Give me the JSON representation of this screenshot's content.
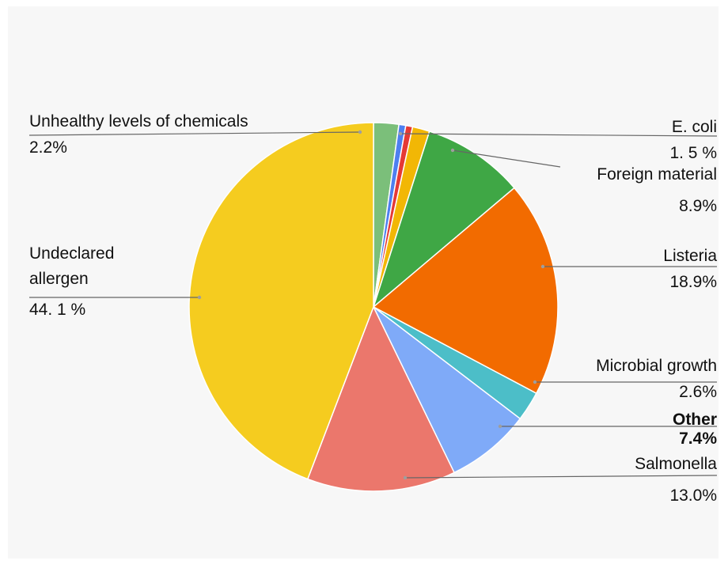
{
  "chart_data": {
    "type": "pie",
    "slices": [
      {
        "label": "Unhealthy levels of chemicals",
        "display_value": "2.2%",
        "value": 2.2,
        "color": "#7bbf7a"
      },
      {
        "label": "",
        "display_value": "",
        "value": 0.6,
        "color": "#4e7ff0"
      },
      {
        "label": "",
        "display_value": "",
        "value": 0.6,
        "color": "#e53935"
      },
      {
        "label": "E. coli",
        "display_value": "1. 5 %",
        "value": 1.5,
        "color": "#f2b705"
      },
      {
        "label": "Foreign material",
        "display_value": "8.9%",
        "value": 8.9,
        "color": "#3fa745"
      },
      {
        "label": "Listeria",
        "display_value": "18.9%",
        "value": 18.9,
        "color": "#f26b00"
      },
      {
        "label": "Microbial growth",
        "display_value": "2.6%",
        "value": 2.6,
        "color": "#4cbec8"
      },
      {
        "label": "Other",
        "display_value": "7.4%",
        "value": 7.4,
        "color": "#7faaf8"
      },
      {
        "label": "Salmonella",
        "display_value": "13.0%",
        "value": 13.0,
        "color": "#eb776c"
      },
      {
        "label": "Undeclared allergen",
        "display_value": "44. 1 %",
        "value": 44.1,
        "color": "#f5cc1f"
      }
    ],
    "start_angle_deg": -90,
    "direction": "clockwise",
    "legend": "none"
  }
}
